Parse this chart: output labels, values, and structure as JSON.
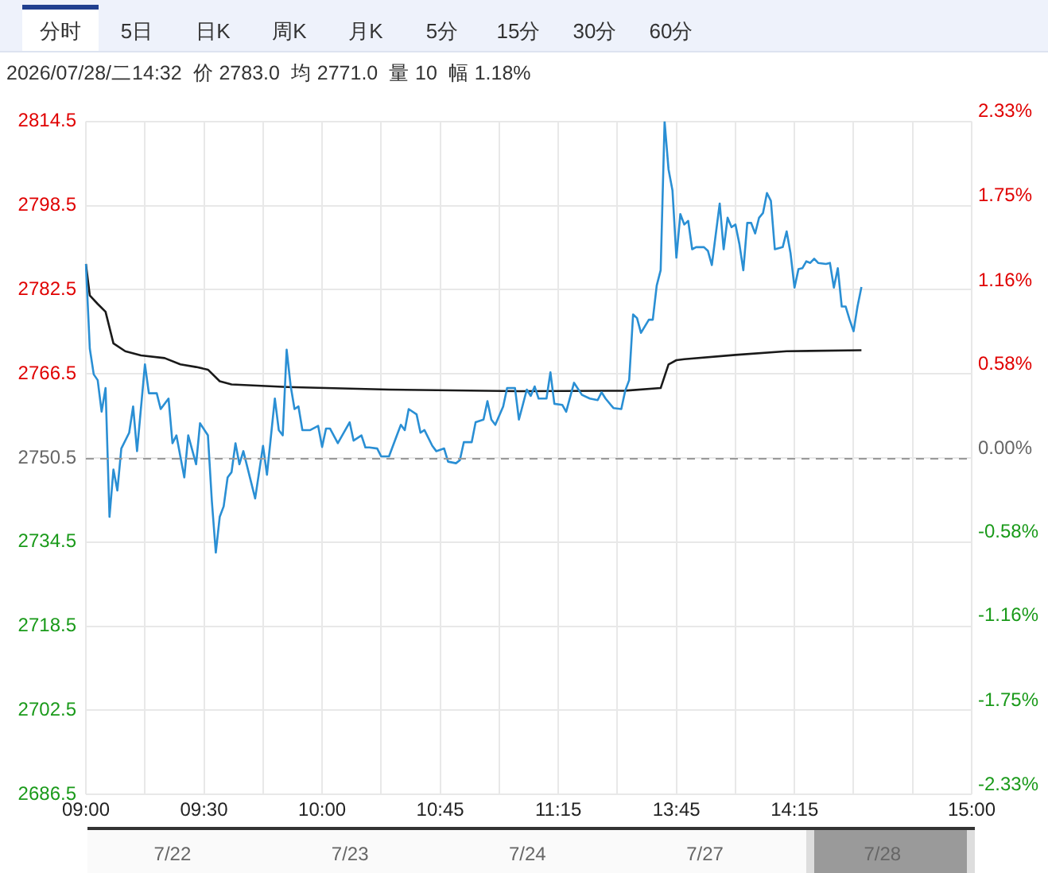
{
  "chart_data": {
    "type": "line",
    "subtitle": "2026/07/28/二14:32  价 2783.0  均 2771.0  量 10  幅 1.18%",
    "annotations": [
      "分时",
      "5日",
      "日K",
      "周K",
      "月K",
      "5分",
      "15分",
      "30分",
      "60分",
      "7/22",
      "7/23",
      "7/24",
      "7/27",
      "7/28"
    ],
    "categories": [
      "09:00",
      null,
      null,
      null,
      null,
      null,
      null,
      null,
      null,
      null,
      null,
      null,
      null,
      null,
      null,
      null,
      null,
      null,
      null,
      null,
      null,
      null,
      null,
      null,
      null,
      null,
      null,
      null,
      null,
      null,
      "09:30",
      null,
      null,
      null,
      null,
      null,
      null,
      null,
      null,
      null,
      null,
      null,
      null,
      null,
      null,
      null,
      null,
      null,
      null,
      null,
      null,
      null,
      null,
      null,
      null,
      null,
      null,
      null,
      null,
      null,
      "10:00",
      null,
      null,
      null,
      null,
      null,
      null,
      null,
      null,
      null,
      null,
      null,
      null,
      null,
      null,
      null,
      null,
      null,
      null,
      null,
      null,
      null,
      null,
      null,
      null,
      null,
      null,
      null,
      null,
      null,
      "10:45",
      null,
      null,
      null,
      null,
      null,
      null,
      null,
      null,
      null,
      null,
      null,
      null,
      null,
      null,
      null,
      null,
      null,
      null,
      null,
      null,
      null,
      null,
      null,
      null,
      null,
      null,
      null,
      null,
      null,
      "11:15",
      null,
      null,
      null,
      null,
      null,
      null,
      null,
      null,
      null,
      null,
      null,
      null,
      null,
      null,
      null,
      null,
      null,
      null,
      null,
      null,
      null,
      null,
      null,
      null,
      null,
      null,
      null,
      null,
      null,
      "13:45",
      null,
      null,
      null,
      null,
      null,
      null,
      null,
      null,
      null,
      null,
      null,
      null,
      null,
      null,
      null,
      null,
      null,
      null,
      null,
      null,
      null,
      null,
      null,
      null,
      null,
      null,
      null,
      null,
      null,
      "14:15",
      null,
      null,
      null,
      null,
      null,
      null,
      null,
      null,
      null,
      null,
      null,
      null,
      null,
      null,
      null,
      null,
      null,
      null,
      null,
      null,
      null,
      null,
      null,
      null,
      null,
      null,
      null,
      null,
      null,
      null,
      null,
      null,
      null,
      null,
      null,
      null,
      null,
      null,
      null,
      null,
      null,
      null,
      null,
      null,
      "15:00"
    ],
    "series": [
      {
        "color": "#2a8fd4",
        "values": [
          2787.4,
          2771.3,
          2766.4,
          2765.3,
          2759.3,
          2763.8,
          2739.3,
          2748.3,
          2744.3,
          2752.3,
          null,
          2755.3,
          2760.3,
          2751.8,
          null,
          2768.3,
          2762.8,
          null,
          2762.8,
          2759.8,
          null,
          2761.8,
          2753.3,
          2754.8,
          null,
          2746.8,
          2754.8,
          null,
          2749.3,
          2757.1,
          null,
          2754.8,
          2742.3,
          2732.5,
          2739.3,
          2741.3,
          2746.8,
          2747.8,
          2753.3,
          2749.3,
          2751.8,
          null,
          null,
          2742.8,
          null,
          2752.8,
          2747.3,
          null,
          2761.8,
          2755.8,
          2754.8,
          2771.1,
          2764.3,
          2759.8,
          2760.3,
          2755.8,
          null,
          2755.8,
          null,
          2756.6,
          2752.6,
          2756.1,
          2756.1,
          null,
          2753.3,
          null,
          null,
          2757.3,
          2753.8,
          null,
          2754.8,
          2752.5,
          2752.5,
          null,
          2752.3,
          2750.8,
          2750.8,
          2750.8,
          null,
          2754.8,
          2756.8,
          2755.8,
          2759.8,
          null,
          2758.8,
          2755.3,
          2755.8,
          null,
          2752.8,
          2751.8,
          null,
          2752.3,
          2749.8,
          null,
          2749.5,
          2750.1,
          2753.5,
          null,
          2753.5,
          2757.3,
          null,
          2757.8,
          2761.3,
          2757.8,
          2756.8,
          null,
          2760.3,
          2763.8,
          null,
          2763.8,
          2757.8,
          null,
          2763.5,
          2762.3,
          2764.1,
          2761.8,
          null,
          2761.8,
          2766.8,
          2760.8,
          null,
          2760.6,
          2759.3,
          null,
          2764.8,
          null,
          2762.5,
          null,
          2761.8,
          null,
          2761.5,
          2763.0,
          2761.8,
          null,
          2760.0,
          null,
          2759.8,
          2763.3,
          2765.3,
          2777.8,
          2777.1,
          2774.3,
          null,
          2776.8,
          2776.8,
          2783.3,
          2786.2,
          2814.5,
          2805.4,
          2801.4,
          2788.6,
          2796.9,
          2794.9,
          2795.6,
          2790.2,
          2790.6,
          null,
          2790.6,
          2789.9,
          2787.2,
          null,
          2798.9,
          2790.2,
          2796.2,
          2794.4,
          2794.9,
          2791.2,
          2786.2,
          2795.2,
          2795.2,
          2793.2,
          2796.2,
          2797.1,
          2800.9,
          2799.4,
          2790.2,
          null,
          2790.6,
          2793.6,
          2789.4,
          2782.9,
          2786.4,
          2786.6,
          2787.9,
          2787.6,
          2788.4,
          2787.6,
          null,
          2787.4,
          2787.6,
          2782.9,
          2786.6,
          2779.3,
          2779.3,
          2776.8,
          2774.6,
          2779.3,
          2783.0,
          null,
          null,
          null,
          null,
          null,
          null,
          null,
          null,
          null,
          null,
          null,
          null,
          null,
          null,
          null,
          null,
          null,
          null,
          null,
          null,
          null,
          null,
          null,
          null,
          null,
          null,
          null,
          null
        ]
      },
      {
        "color": "#1a1a1a",
        "values": [
          2787.4,
          2781.4,
          null,
          2779.8,
          null,
          2778.3,
          null,
          2772.3,
          null,
          null,
          2770.8,
          null,
          null,
          null,
          2770.0,
          null,
          null,
          null,
          null,
          null,
          2769.5,
          null,
          null,
          null,
          2768.3,
          null,
          null,
          null,
          2767.8,
          null,
          null,
          2767.3,
          null,
          null,
          2765.1,
          null,
          null,
          2764.5,
          null,
          null,
          null,
          null,
          null,
          null,
          null,
          null,
          null,
          null,
          null,
          null,
          null,
          2764.0,
          null,
          null,
          null,
          null,
          null,
          null,
          null,
          null,
          null,
          null,
          null,
          null,
          null,
          null,
          null,
          null,
          null,
          null,
          null,
          null,
          null,
          null,
          null,
          null,
          null,
          2763.5,
          null,
          null,
          null,
          null,
          null,
          null,
          null,
          null,
          null,
          null,
          null,
          null,
          null,
          null,
          null,
          null,
          null,
          null,
          null,
          null,
          null,
          null,
          null,
          null,
          null,
          null,
          null,
          null,
          null,
          null,
          null,
          null,
          2763.2,
          null,
          null,
          null,
          null,
          null,
          null,
          null,
          null,
          null,
          null,
          null,
          null,
          null,
          null,
          null,
          null,
          null,
          null,
          null,
          null,
          null,
          null,
          null,
          null,
          null,
          null,
          2763.3,
          null,
          null,
          null,
          null,
          null,
          null,
          null,
          null,
          2763.8,
          null,
          2768.3,
          null,
          2769.1,
          null,
          2769.3,
          null,
          null,
          null,
          null,
          null,
          null,
          null,
          null,
          null,
          null,
          null,
          null,
          2770.1,
          null,
          null,
          null,
          null,
          null,
          null,
          null,
          null,
          null,
          null,
          null,
          null,
          2770.8,
          null,
          null,
          null,
          null,
          null,
          null,
          null,
          null,
          null,
          null,
          null,
          null,
          null,
          null,
          null,
          null,
          null,
          null,
          2771.0,
          null,
          null,
          null,
          null,
          null,
          null,
          null,
          null,
          null,
          null,
          null,
          null,
          null,
          null,
          null,
          null,
          null,
          null,
          null,
          null,
          null,
          null,
          null,
          null,
          null,
          null,
          null,
          null
        ]
      }
    ],
    "ylim": [
      2686.5,
      2814.5
    ],
    "yticks": [
      2686.5,
      2702.5,
      2718.5,
      2734.5,
      2750.5,
      2766.5,
      2782.5,
      2798.5,
      2814.5
    ],
    "y2lim": [
      -2.33,
      2.33
    ],
    "y2ticks": [
      {
        "value": -2.33,
        "label": "-2.33%"
      },
      {
        "value": -1.75,
        "label": "-1.75%"
      },
      {
        "value": -1.16,
        "label": "-1.16%"
      },
      {
        "value": -0.58,
        "label": "-0.58%"
      },
      {
        "value": 0,
        "label": "0.00%"
      },
      {
        "value": 0.58,
        "label": "0.58%"
      },
      {
        "value": 1.16,
        "label": "1.16%"
      },
      {
        "value": 1.75,
        "label": "1.75%"
      },
      {
        "value": 2.33,
        "label": "2.33%"
      }
    ],
    "ref_lines": [
      {
        "axis": "y",
        "value": 2750.5,
        "color": "#999999",
        "line_style": "dashed"
      }
    ],
    "grid": true,
    "legend": false,
    "marker": "none",
    "line_style": "solid"
  }
}
